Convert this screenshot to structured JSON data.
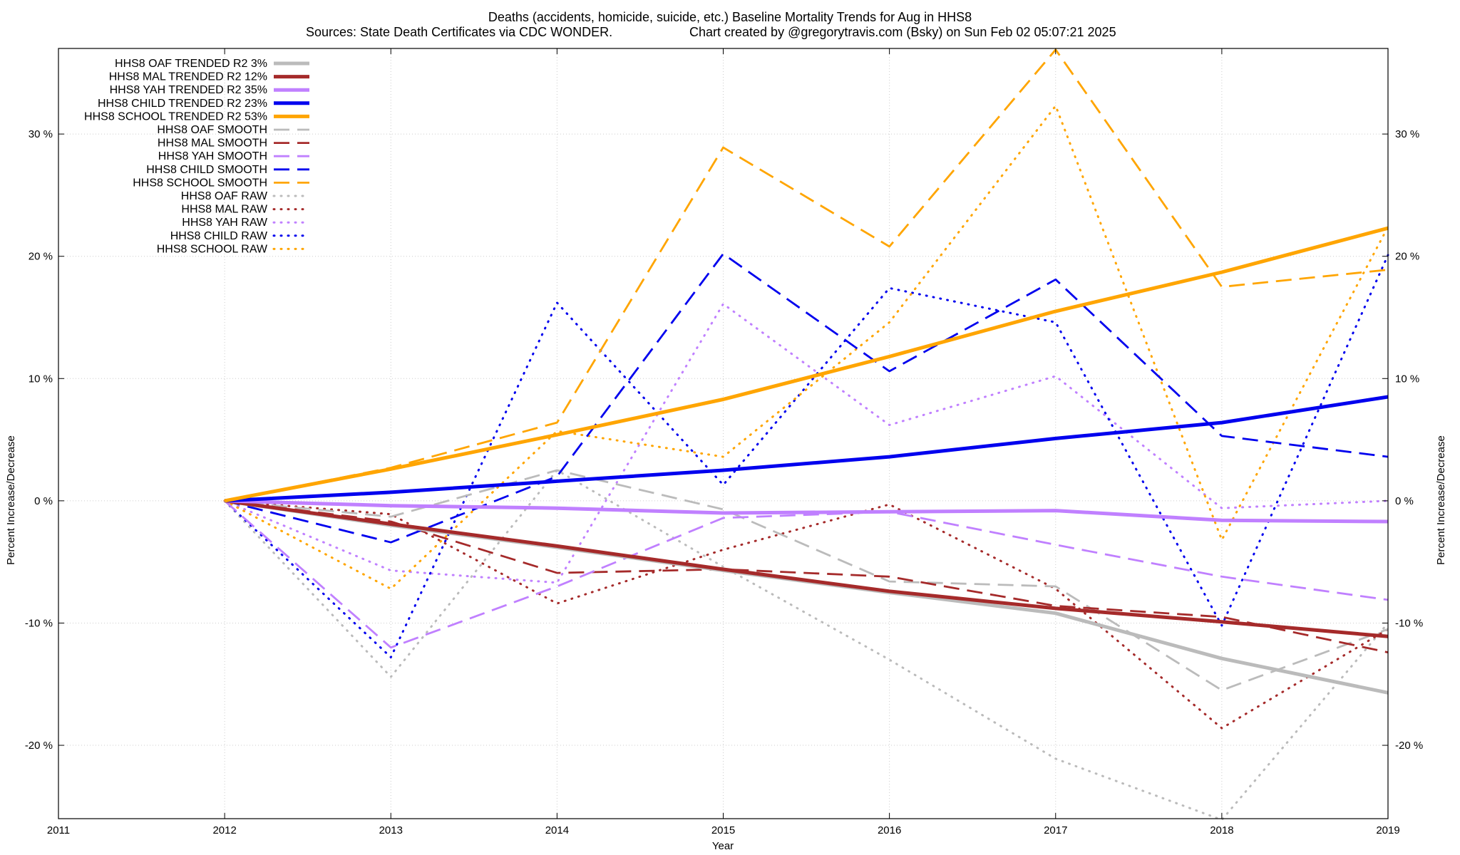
{
  "chart_data": {
    "type": "line",
    "title": "Deaths (accidents, homicide, suicide, etc.)  Baseline Mortality Trends for Aug in HHS8",
    "subtitle_left": "Sources: State Death Certificates via CDC WONDER.",
    "subtitle_right": "Chart created by @gregorytravis.com (Bsky) on Sun Feb 02 05:07:21 2025",
    "xlabel": "Year",
    "ylabel": "Percent Increase/Decrease",
    "y2label": "Percent Increase/Decrease",
    "xlim": [
      2011,
      2019
    ],
    "ylim": [
      -26,
      37
    ],
    "grid": true,
    "legend_position": "top-left",
    "x_ticks": [
      "2011",
      "2012",
      "2013",
      "2014",
      "2015",
      "2016",
      "2017",
      "2018",
      "2019"
    ],
    "y_ticks": [
      {
        "value": 30,
        "label": "30 %"
      },
      {
        "value": 20,
        "label": "20 %"
      },
      {
        "value": 10,
        "label": "10 %"
      },
      {
        "value": 0,
        "label": "0 %"
      },
      {
        "value": -10,
        "label": "-10 %"
      },
      {
        "value": -20,
        "label": "-20 %"
      }
    ],
    "x": [
      2012,
      2013,
      2014,
      2015,
      2016,
      2017,
      2018,
      2019
    ],
    "series": [
      {
        "name": "HHS8 OAF TRENDED R2  3%",
        "color": "#bbbbbb",
        "style": "solid",
        "values": [
          0,
          -2.0,
          -3.8,
          -5.7,
          -7.5,
          -9.2,
          -12.9,
          -15.7
        ]
      },
      {
        "name": "HHS8 MAL TRENDED R2  12%",
        "color": "#a52a2a",
        "style": "solid",
        "values": [
          0,
          -1.9,
          -3.7,
          -5.6,
          -7.4,
          -8.8,
          -9.9,
          -11.1
        ]
      },
      {
        "name": "HHS8 YAH TRENDED R2  35%",
        "color": "#c080ff",
        "style": "solid",
        "values": [
          0,
          -0.4,
          -0.6,
          -1.0,
          -0.9,
          -0.8,
          -1.6,
          -1.7
        ]
      },
      {
        "name": "HHS8 CHILD TRENDED R2  23%",
        "color": "#0000ee",
        "style": "solid",
        "values": [
          0,
          0.7,
          1.6,
          2.5,
          3.6,
          5.1,
          6.4,
          8.5
        ]
      },
      {
        "name": "HHS8 SCHOOL TRENDED R2  53%",
        "color": "#ffa500",
        "style": "solid",
        "values": [
          0,
          2.6,
          5.4,
          8.3,
          11.8,
          15.5,
          18.7,
          22.3
        ]
      },
      {
        "name": "HHS8 OAF SMOOTH",
        "color": "#bbbbbb",
        "style": "dashed",
        "values": [
          0,
          -1.3,
          2.5,
          -0.7,
          -6.6,
          -7.0,
          -15.5,
          -10.5
        ]
      },
      {
        "name": "HHS8 MAL SMOOTH",
        "color": "#a52a2a",
        "style": "dashed",
        "values": [
          0,
          -1.7,
          -5.9,
          -5.6,
          -6.2,
          -8.6,
          -9.5,
          -12.4
        ]
      },
      {
        "name": "HHS8 YAH SMOOTH",
        "color": "#c080ff",
        "style": "dashed",
        "values": [
          0,
          -12.0,
          -7.0,
          -1.4,
          -0.9,
          -3.6,
          -6.2,
          -8.1
        ]
      },
      {
        "name": "HHS8 CHILD SMOOTH",
        "color": "#0000ee",
        "style": "dashed",
        "values": [
          0,
          -3.4,
          2.0,
          20.2,
          10.6,
          18.1,
          5.3,
          3.6
        ]
      },
      {
        "name": "HHS8 SCHOOL SMOOTH",
        "color": "#ffa500",
        "style": "dashed",
        "values": [
          0,
          2.7,
          6.4,
          28.9,
          20.8,
          36.9,
          17.5,
          18.9
        ]
      },
      {
        "name": "HHS8 OAF RAW",
        "color": "#bbbbbb",
        "style": "dotted",
        "values": [
          0,
          -14.4,
          2.5,
          -5.4,
          -13.0,
          -21.1,
          -26.1,
          -10.0
        ]
      },
      {
        "name": "HHS8 MAL RAW",
        "color": "#a52a2a",
        "style": "dotted",
        "values": [
          0,
          -1.1,
          -8.4,
          -4.0,
          -0.3,
          -7.2,
          -18.6,
          -10.5
        ]
      },
      {
        "name": "HHS8 YAH RAW",
        "color": "#c080ff",
        "style": "dotted",
        "values": [
          0,
          -5.7,
          -6.7,
          16.1,
          6.2,
          10.2,
          -0.6,
          0.0
        ]
      },
      {
        "name": "HHS8 CHILD RAW",
        "color": "#0000ee",
        "style": "dotted",
        "values": [
          0,
          -12.8,
          16.2,
          1.3,
          17.4,
          14.6,
          -10.2,
          20.1
        ]
      },
      {
        "name": "HHS8 SCHOOL RAW",
        "color": "#ffa500",
        "style": "dotted",
        "values": [
          0,
          -7.2,
          5.7,
          3.6,
          14.6,
          32.3,
          -3.2,
          22.4
        ]
      }
    ]
  }
}
